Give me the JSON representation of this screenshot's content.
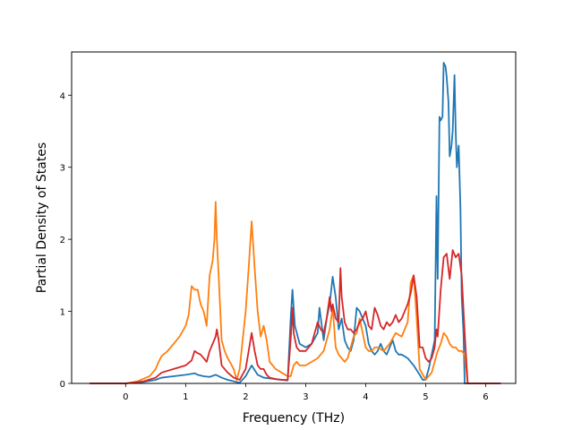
{
  "chart_data": {
    "type": "line",
    "xlabel": "Frequency (THz)",
    "ylabel": "Partial Density of States",
    "xlim": [
      -0.9,
      6.5
    ],
    "ylim": [
      0,
      4.6
    ],
    "xticks": [
      "0",
      "1",
      "2",
      "3",
      "4",
      "5",
      "6"
    ],
    "yticks": [
      "0",
      "1",
      "2",
      "3",
      "4"
    ],
    "grid": false,
    "legend": "none",
    "series": [
      {
        "color": "#1f77b4",
        "x": [
          -0.6,
          0.0,
          0.3,
          0.5,
          0.6,
          0.8,
          1.0,
          1.15,
          1.2,
          1.3,
          1.4,
          1.5,
          1.6,
          1.7,
          1.8,
          1.9,
          2.0,
          2.1,
          2.2,
          2.3,
          2.5,
          2.7,
          2.75,
          2.78,
          2.82,
          2.9,
          3.0,
          3.1,
          3.2,
          3.23,
          3.3,
          3.35,
          3.4,
          3.45,
          3.5,
          3.55,
          3.6,
          3.65,
          3.7,
          3.75,
          3.8,
          3.85,
          3.9,
          3.95,
          4.0,
          4.05,
          4.1,
          4.15,
          4.2,
          4.25,
          4.3,
          4.35,
          4.4,
          4.45,
          4.5,
          4.55,
          4.6,
          4.7,
          4.8,
          4.9,
          4.95,
          5.0,
          5.05,
          5.1,
          5.15,
          5.18,
          5.2,
          5.23,
          5.25,
          5.28,
          5.3,
          5.33,
          5.35,
          5.38,
          5.4,
          5.43,
          5.45,
          5.48,
          5.5,
          5.52,
          5.55,
          5.58,
          5.6,
          5.63,
          5.65,
          5.7,
          6.25
        ],
        "y": [
          0,
          0,
          0.02,
          0.05,
          0.08,
          0.1,
          0.12,
          0.14,
          0.12,
          0.1,
          0.09,
          0.12,
          0.08,
          0.05,
          0.03,
          0.01,
          0.1,
          0.25,
          0.12,
          0.08,
          0.06,
          0.04,
          0.9,
          1.3,
          0.8,
          0.55,
          0.5,
          0.55,
          0.7,
          1.05,
          0.6,
          0.9,
          1.1,
          1.48,
          1.2,
          0.75,
          0.9,
          0.6,
          0.5,
          0.45,
          0.6,
          1.05,
          1.0,
          0.9,
          0.8,
          0.55,
          0.45,
          0.4,
          0.45,
          0.55,
          0.45,
          0.4,
          0.5,
          0.6,
          0.45,
          0.4,
          0.4,
          0.35,
          0.25,
          0.12,
          0.05,
          0.05,
          0.2,
          0.4,
          0.6,
          2.6,
          1.45,
          3.7,
          3.65,
          3.7,
          4.45,
          4.4,
          4.25,
          3.9,
          3.15,
          3.3,
          3.5,
          4.28,
          3.5,
          3.0,
          3.3,
          2.4,
          1.2,
          0.7,
          0.0,
          0,
          0
        ]
      },
      {
        "color": "#ff7f0e",
        "x": [
          -0.6,
          0.0,
          0.2,
          0.4,
          0.5,
          0.55,
          0.6,
          0.7,
          0.8,
          0.9,
          1.0,
          1.05,
          1.1,
          1.15,
          1.2,
          1.25,
          1.3,
          1.35,
          1.4,
          1.45,
          1.48,
          1.5,
          1.52,
          1.55,
          1.6,
          1.65,
          1.7,
          1.75,
          1.8,
          1.85,
          1.9,
          1.95,
          2.0,
          2.05,
          2.1,
          2.15,
          2.2,
          2.25,
          2.3,
          2.35,
          2.4,
          2.5,
          2.6,
          2.7,
          2.75,
          2.8,
          2.85,
          2.9,
          3.0,
          3.1,
          3.2,
          3.3,
          3.35,
          3.4,
          3.45,
          3.5,
          3.55,
          3.6,
          3.65,
          3.7,
          3.75,
          3.8,
          3.85,
          3.9,
          3.95,
          4.0,
          4.05,
          4.1,
          4.15,
          4.2,
          4.3,
          4.4,
          4.5,
          4.6,
          4.7,
          4.75,
          4.8,
          4.85,
          4.9,
          5.0,
          5.1,
          5.15,
          5.2,
          5.25,
          5.3,
          5.35,
          5.4,
          5.45,
          5.5,
          5.55,
          5.6,
          5.65,
          5.7,
          6.25
        ],
        "y": [
          0,
          0,
          0.03,
          0.1,
          0.2,
          0.3,
          0.38,
          0.45,
          0.55,
          0.65,
          0.8,
          0.95,
          1.35,
          1.3,
          1.3,
          1.1,
          1.0,
          0.8,
          1.5,
          1.7,
          2.0,
          2.52,
          2.0,
          1.5,
          0.6,
          0.45,
          0.35,
          0.28,
          0.2,
          0.05,
          0.2,
          0.6,
          1.0,
          1.6,
          2.25,
          1.6,
          1.0,
          0.65,
          0.8,
          0.6,
          0.3,
          0.2,
          0.15,
          0.1,
          0.1,
          0.25,
          0.3,
          0.25,
          0.25,
          0.3,
          0.35,
          0.45,
          0.6,
          0.75,
          1.05,
          0.5,
          0.4,
          0.35,
          0.3,
          0.35,
          0.5,
          0.65,
          0.7,
          0.9,
          0.7,
          0.5,
          0.45,
          0.45,
          0.5,
          0.5,
          0.45,
          0.55,
          0.7,
          0.65,
          0.85,
          1.4,
          1.5,
          0.9,
          0.2,
          0.05,
          0.15,
          0.3,
          0.45,
          0.55,
          0.7,
          0.65,
          0.55,
          0.5,
          0.5,
          0.45,
          0.45,
          0.4,
          0,
          0
        ]
      },
      {
        "color": "#d62728",
        "x": [
          -0.6,
          0.0,
          0.3,
          0.5,
          0.6,
          0.8,
          1.0,
          1.1,
          1.15,
          1.2,
          1.25,
          1.3,
          1.35,
          1.4,
          1.45,
          1.5,
          1.52,
          1.55,
          1.6,
          1.7,
          1.8,
          1.9,
          2.0,
          2.05,
          2.1,
          2.15,
          2.2,
          2.25,
          2.3,
          2.35,
          2.4,
          2.5,
          2.6,
          2.7,
          2.75,
          2.78,
          2.8,
          2.85,
          2.9,
          3.0,
          3.1,
          3.2,
          3.25,
          3.3,
          3.35,
          3.4,
          3.43,
          3.45,
          3.5,
          3.55,
          3.58,
          3.6,
          3.65,
          3.7,
          3.75,
          3.8,
          3.85,
          3.9,
          3.95,
          4.0,
          4.05,
          4.1,
          4.15,
          4.2,
          4.25,
          4.3,
          4.35,
          4.4,
          4.45,
          4.5,
          4.55,
          4.6,
          4.65,
          4.7,
          4.75,
          4.8,
          4.85,
          4.9,
          4.95,
          5.0,
          5.05,
          5.1,
          5.15,
          5.18,
          5.2,
          5.25,
          5.3,
          5.35,
          5.4,
          5.45,
          5.5,
          5.55,
          5.6,
          5.65,
          5.7,
          6.25
        ],
        "y": [
          0,
          0,
          0.03,
          0.08,
          0.15,
          0.2,
          0.25,
          0.32,
          0.45,
          0.42,
          0.4,
          0.35,
          0.3,
          0.45,
          0.55,
          0.65,
          0.75,
          0.6,
          0.25,
          0.15,
          0.08,
          0.05,
          0.2,
          0.45,
          0.7,
          0.45,
          0.25,
          0.2,
          0.2,
          0.12,
          0.08,
          0.06,
          0.05,
          0.05,
          0.6,
          1.05,
          0.7,
          0.5,
          0.45,
          0.45,
          0.55,
          0.85,
          0.75,
          0.7,
          0.9,
          1.2,
          1.0,
          1.1,
          0.9,
          0.85,
          1.6,
          1.2,
          0.85,
          0.75,
          0.75,
          0.7,
          0.75,
          0.85,
          0.9,
          1.0,
          0.8,
          0.75,
          1.05,
          0.95,
          0.8,
          0.75,
          0.85,
          0.8,
          0.85,
          0.95,
          0.85,
          0.9,
          1.0,
          1.1,
          1.25,
          1.5,
          1.2,
          0.5,
          0.5,
          0.35,
          0.3,
          0.35,
          0.5,
          0.75,
          0.65,
          1.3,
          1.75,
          1.8,
          1.45,
          1.85,
          1.75,
          1.8,
          1.5,
          0.7,
          0,
          0
        ]
      }
    ]
  }
}
